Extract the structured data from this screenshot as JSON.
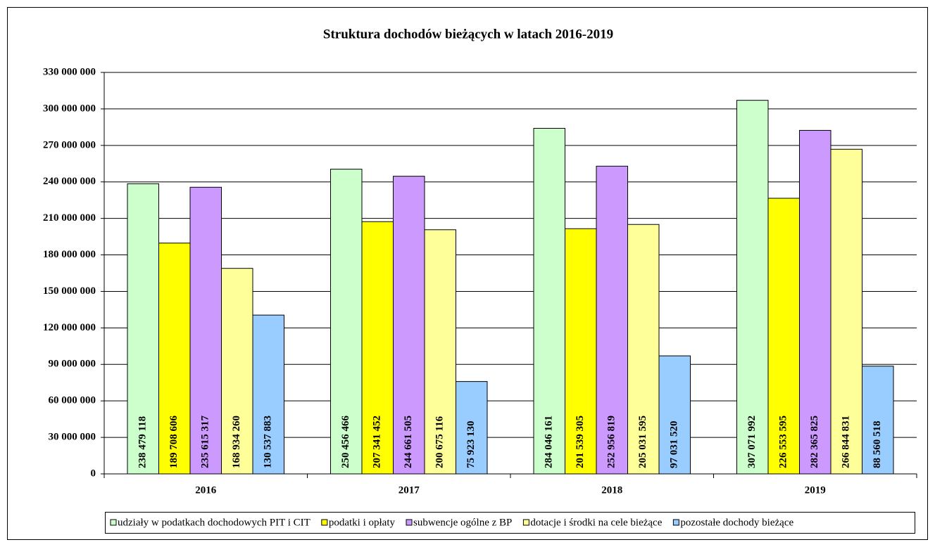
{
  "chart_data": {
    "type": "bar",
    "title": "Struktura dochodów bieżących w latach 2016-2019",
    "categories": [
      "2016",
      "2017",
      "2018",
      "2019"
    ],
    "series": [
      {
        "name": "udziały w podatkach dochodowych PIT i CIT",
        "color": "#ccffcc",
        "values": [
          238479118,
          250456466,
          284046161,
          307071992
        ],
        "value_labels": [
          "238 479 118",
          "250 456 466",
          "284 046 161",
          "307 071 992"
        ]
      },
      {
        "name": "podatki i opłaty",
        "color": "#ffff00",
        "values": [
          189708606,
          207341452,
          201539305,
          226553595
        ],
        "value_labels": [
          "189 708 606",
          "207 341 452",
          "201 539 305",
          "226 553 595"
        ]
      },
      {
        "name": "subwencje ogólne z BP",
        "color": "#cc99ff",
        "values": [
          235615317,
          244661505,
          252956819,
          282365825
        ],
        "value_labels": [
          "235 615 317",
          "244 661 505",
          "252 956 819",
          "282 365 825"
        ]
      },
      {
        "name": "dotacje i środki na cele bieżące",
        "color": "#ffff99",
        "values": [
          168934260,
          200675116,
          205031595,
          266844831
        ],
        "value_labels": [
          "168 934 260",
          "200 675 116",
          "205 031 595",
          "266 844 831"
        ]
      },
      {
        "name": "pozostałe dochody bieżące",
        "color": "#99ccff",
        "values": [
          130537883,
          75923130,
          97031520,
          88560518
        ],
        "value_labels": [
          "130 537 883",
          "75 923 130",
          "97 031 520",
          "88 560 518"
        ]
      }
    ],
    "ylim": [
      0,
      330000000
    ],
    "yticks": [
      0,
      {
        "value": 30000000,
        "label": "30 000 000"
      },
      {
        "value": 60000000,
        "label": "60 000 000"
      },
      {
        "value": 90000000,
        "label": "90 000 000"
      },
      {
        "value": 120000000,
        "label": "120 000 000"
      },
      {
        "value": 150000000,
        "label": "150 000 000"
      },
      {
        "value": 180000000,
        "label": "180 000 000"
      },
      {
        "value": 210000000,
        "label": "210 000 000"
      },
      {
        "value": 240000000,
        "label": "240 000 000"
      },
      {
        "value": 270000000,
        "label": "270 000 000"
      },
      {
        "value": 300000000,
        "label": "300 000 000"
      },
      {
        "value": 330000000,
        "label": "330 000 000"
      }
    ],
    "grid": true,
    "legend": "bottom"
  }
}
